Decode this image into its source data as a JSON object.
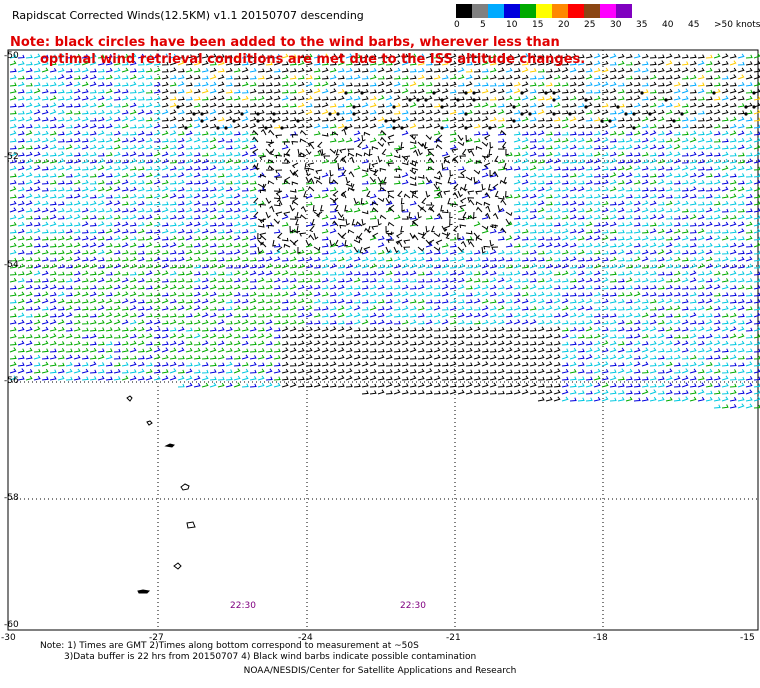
{
  "title": "Rapidscat Corrected Winds(12.5KM) v1.1 20150707 descending",
  "note_line1": "Note: black circles have been added to the wind barbs, wherever less than",
  "note_line2": "optimal wind retrieval conditions are met due to the ISS altitude changes.",
  "legend": {
    "labels": [
      "0",
      "5",
      "10",
      "15",
      "20",
      "25",
      "30",
      "35",
      "40",
      "45",
      ">50 knots"
    ],
    "colors": [
      "#000000",
      "#808080",
      "#00aaff",
      "#0000dd",
      "#00aa00",
      "#ffff00",
      "#ff8800",
      "#ff0000",
      "#8b4513",
      "#ff00ff",
      "#8000c0"
    ]
  },
  "lat_labels": [
    "-50",
    "-52",
    "-54",
    "-56",
    "-58",
    "-60"
  ],
  "lon_labels": [
    "-30",
    "-27",
    "-24",
    "-21",
    "-18",
    "-15"
  ],
  "time_labels": [
    "22:30",
    "22:30"
  ],
  "bottom_notes": {
    "line1": "Note: 1) Times are GMT 2)Times along bottom correspond to measurement at ~50S",
    "line2": "3)Data buffer is 22 hrs from 20150707 4) Black wind barbs indicate possible contamination"
  },
  "footer": "NOAA/NESDIS/Center for Satellite Applications and Research",
  "map_extent": {
    "lon": [
      -30,
      -15
    ],
    "lat": [
      -60,
      -50
    ]
  }
}
